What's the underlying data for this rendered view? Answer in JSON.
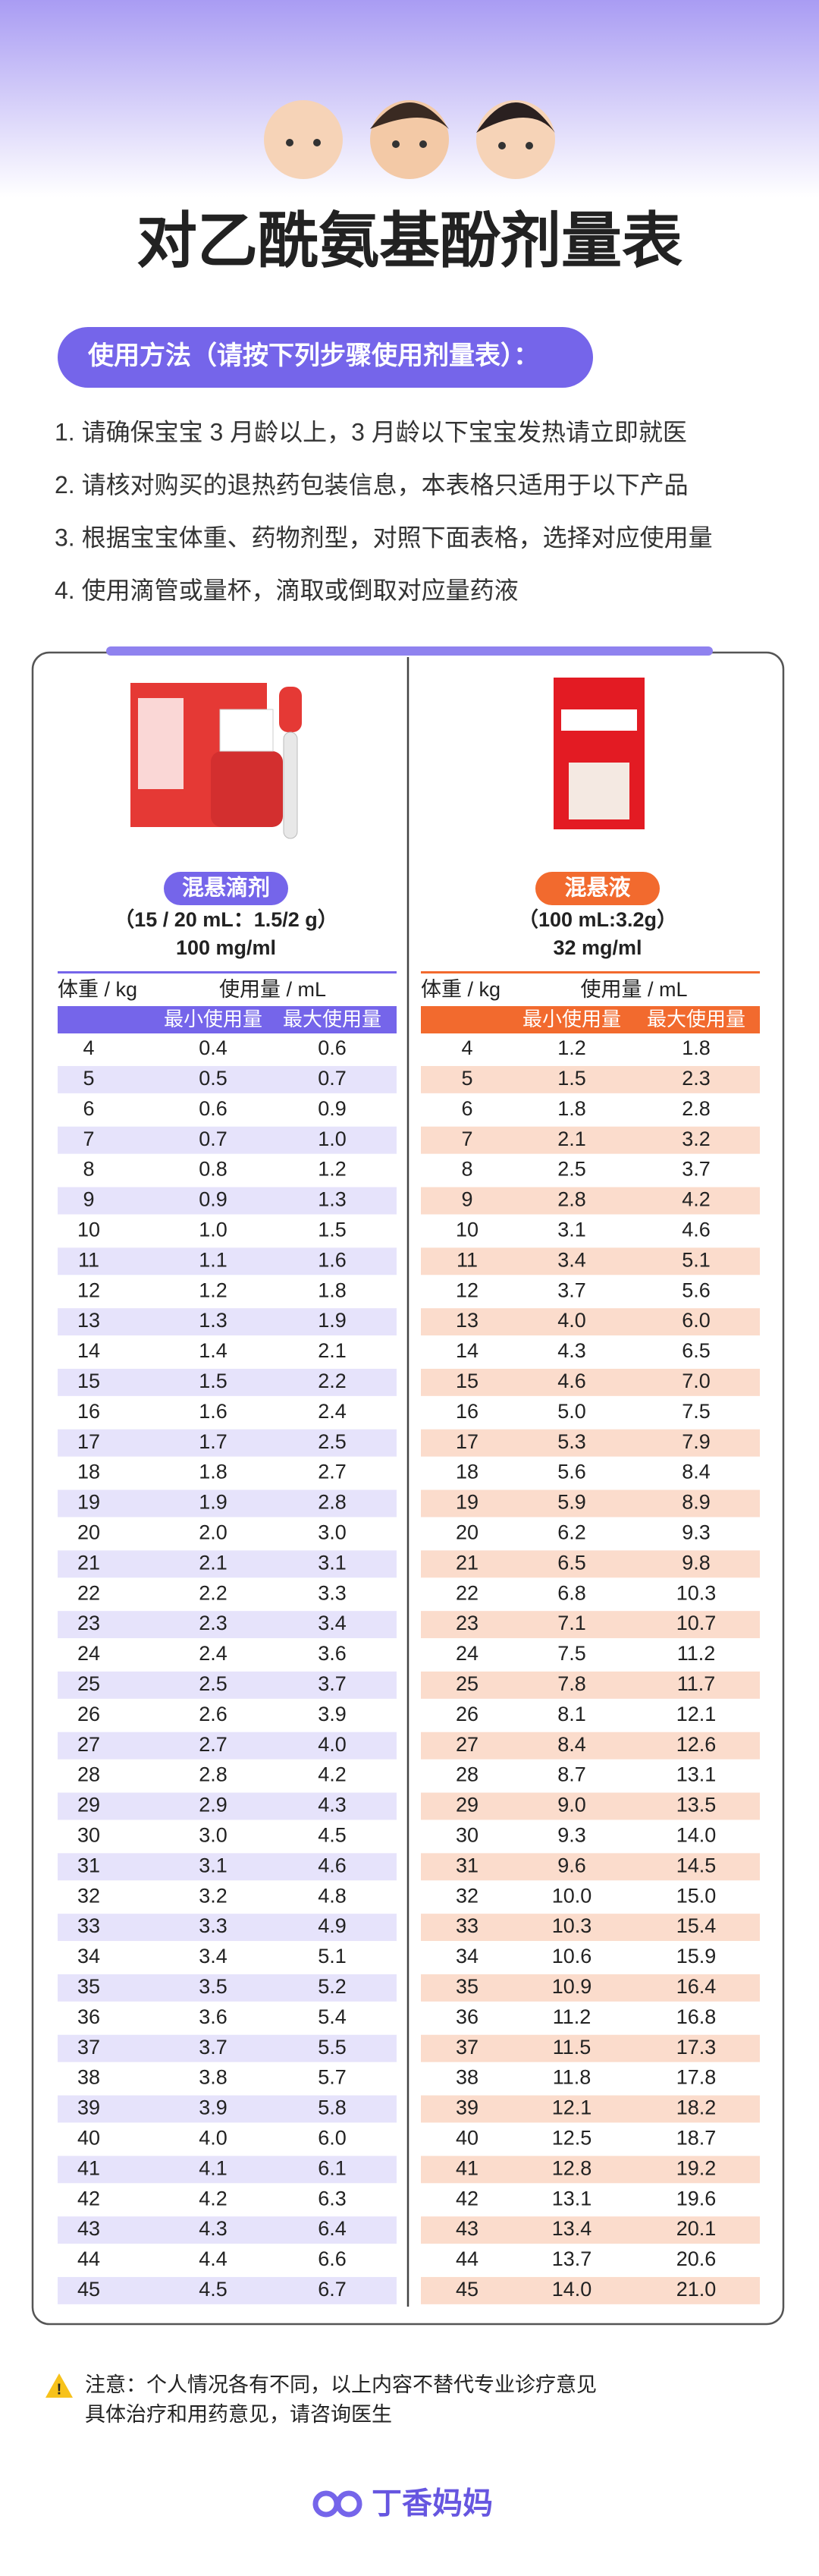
{
  "header": {
    "title": "对乙酰氨基酚剂量表"
  },
  "instructions": {
    "heading": "使用方法（请按下列步骤使用剂量表）：",
    "steps": [
      "1. 请确保宝宝 3 月龄以上，3 月龄以下宝宝发热请立即就医",
      "2. 请核对购买的退热药包装信息，本表格只适用于以下产品",
      "3. 根据宝宝体重、药物剂型，对照下面表格，选择对应使用量",
      "4. 使用滴管或量杯，滴取或倒取对应量药液"
    ]
  },
  "tables": [
    {
      "product": "混悬滴剂",
      "spec": "（15 / 20 mL：1.5/2 g）",
      "concentration": "100 mg/ml",
      "columns": {
        "weight": "体重 / kg",
        "dose": "使用量 / mL",
        "min": "最小使用量",
        "max": "最大使用量"
      },
      "rows": [
        [
          "4",
          "0.4",
          "0.6"
        ],
        [
          "5",
          "0.5",
          "0.7"
        ],
        [
          "6",
          "0.6",
          "0.9"
        ],
        [
          "7",
          "0.7",
          "1.0"
        ],
        [
          "8",
          "0.8",
          "1.2"
        ],
        [
          "9",
          "0.9",
          "1.3"
        ],
        [
          "10",
          "1.0",
          "1.5"
        ],
        [
          "11",
          "1.1",
          "1.6"
        ],
        [
          "12",
          "1.2",
          "1.8"
        ],
        [
          "13",
          "1.3",
          "1.9"
        ],
        [
          "14",
          "1.4",
          "2.1"
        ],
        [
          "15",
          "1.5",
          "2.2"
        ],
        [
          "16",
          "1.6",
          "2.4"
        ],
        [
          "17",
          "1.7",
          "2.5"
        ],
        [
          "18",
          "1.8",
          "2.7"
        ],
        [
          "19",
          "1.9",
          "2.8"
        ],
        [
          "20",
          "2.0",
          "3.0"
        ],
        [
          "21",
          "2.1",
          "3.1"
        ],
        [
          "22",
          "2.2",
          "3.3"
        ],
        [
          "23",
          "2.3",
          "3.4"
        ],
        [
          "24",
          "2.4",
          "3.6"
        ],
        [
          "25",
          "2.5",
          "3.7"
        ],
        [
          "26",
          "2.6",
          "3.9"
        ],
        [
          "27",
          "2.7",
          "4.0"
        ],
        [
          "28",
          "2.8",
          "4.2"
        ],
        [
          "29",
          "2.9",
          "4.3"
        ],
        [
          "30",
          "3.0",
          "4.5"
        ],
        [
          "31",
          "3.1",
          "4.6"
        ],
        [
          "32",
          "3.2",
          "4.8"
        ],
        [
          "33",
          "3.3",
          "4.9"
        ],
        [
          "34",
          "3.4",
          "5.1"
        ],
        [
          "35",
          "3.5",
          "5.2"
        ],
        [
          "36",
          "3.6",
          "5.4"
        ],
        [
          "37",
          "3.7",
          "5.5"
        ],
        [
          "38",
          "3.8",
          "5.7"
        ],
        [
          "39",
          "3.9",
          "5.8"
        ],
        [
          "40",
          "4.0",
          "6.0"
        ],
        [
          "41",
          "4.1",
          "6.1"
        ],
        [
          "42",
          "4.2",
          "6.3"
        ],
        [
          "43",
          "4.3",
          "6.4"
        ],
        [
          "44",
          "4.4",
          "6.6"
        ],
        [
          "45",
          "4.5",
          "6.7"
        ]
      ]
    },
    {
      "product": "混悬液",
      "spec": "（100 mL:3.2g）",
      "concentration": "32 mg/ml",
      "columns": {
        "weight": "体重 / kg",
        "dose": "使用量 / mL",
        "min": "最小使用量",
        "max": "最大使用量"
      },
      "rows": [
        [
          "4",
          "1.2",
          "1.8"
        ],
        [
          "5",
          "1.5",
          "2.3"
        ],
        [
          "6",
          "1.8",
          "2.8"
        ],
        [
          "7",
          "2.1",
          "3.2"
        ],
        [
          "8",
          "2.5",
          "3.7"
        ],
        [
          "9",
          "2.8",
          "4.2"
        ],
        [
          "10",
          "3.1",
          "4.6"
        ],
        [
          "11",
          "3.4",
          "5.1"
        ],
        [
          "12",
          "3.7",
          "5.6"
        ],
        [
          "13",
          "4.0",
          "6.0"
        ],
        [
          "14",
          "4.3",
          "6.5"
        ],
        [
          "15",
          "4.6",
          "7.0"
        ],
        [
          "16",
          "5.0",
          "7.5"
        ],
        [
          "17",
          "5.3",
          "7.9"
        ],
        [
          "18",
          "5.6",
          "8.4"
        ],
        [
          "19",
          "5.9",
          "8.9"
        ],
        [
          "20",
          "6.2",
          "9.3"
        ],
        [
          "21",
          "6.5",
          "9.8"
        ],
        [
          "22",
          "6.8",
          "10.3"
        ],
        [
          "23",
          "7.1",
          "10.7"
        ],
        [
          "24",
          "7.5",
          "11.2"
        ],
        [
          "25",
          "7.8",
          "11.7"
        ],
        [
          "26",
          "8.1",
          "12.1"
        ],
        [
          "27",
          "8.4",
          "12.6"
        ],
        [
          "28",
          "8.7",
          "13.1"
        ],
        [
          "29",
          "9.0",
          "13.5"
        ],
        [
          "30",
          "9.3",
          "14.0"
        ],
        [
          "31",
          "9.6",
          "14.5"
        ],
        [
          "32",
          "10.0",
          "15.0"
        ],
        [
          "33",
          "10.3",
          "15.4"
        ],
        [
          "34",
          "10.6",
          "15.9"
        ],
        [
          "35",
          "10.9",
          "16.4"
        ],
        [
          "36",
          "11.2",
          "16.8"
        ],
        [
          "37",
          "11.5",
          "17.3"
        ],
        [
          "38",
          "11.8",
          "17.8"
        ],
        [
          "39",
          "12.1",
          "18.2"
        ],
        [
          "40",
          "12.5",
          "18.7"
        ],
        [
          "41",
          "12.8",
          "19.2"
        ],
        [
          "42",
          "13.1",
          "19.6"
        ],
        [
          "43",
          "13.4",
          "20.1"
        ],
        [
          "44",
          "13.7",
          "20.6"
        ],
        [
          "45",
          "14.0",
          "21.0"
        ]
      ]
    }
  ],
  "note": {
    "lines": [
      "注意：个人情况各有不同，以上内容不替代专业诊疗意见",
      "具体治疗和用药意见，请咨询医生"
    ]
  },
  "footer": {
    "brand": "丁香妈妈"
  }
}
